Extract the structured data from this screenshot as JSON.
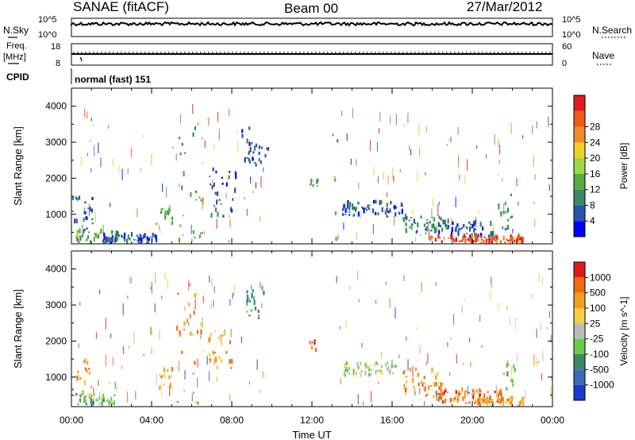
{
  "header": {
    "title": "SANAE (fitACF)",
    "beam": "Beam 00",
    "date": "27/Mar/2012"
  },
  "panels": {
    "nsky_label": "N.Sky",
    "nsearch_label": "N.Search",
    "noise_ticks_left": [
      "10^5",
      "10^0"
    ],
    "noise_ticks_right": [
      "10^5",
      "10^0"
    ],
    "freq_label_1": "Freq.",
    "freq_label_2": "[MHz]",
    "freq_ticks": [
      "18",
      "8"
    ],
    "nave_label": "Nave",
    "nave_ticks": [
      "60",
      "0"
    ],
    "cpid_label": "CPID",
    "cpid_text": "normal (fast) 151"
  },
  "colors": {
    "power": [
      "#0000ff",
      "#2a52a8",
      "#3a8a6a",
      "#55aa44",
      "#9bd84a",
      "#f0d02a",
      "#f08a2a",
      "#f05a1a",
      "#e01a1a"
    ],
    "velocity": [
      "#2038c8",
      "#3a6ab8",
      "#3a8a6a",
      "#66cc44",
      "#bcbcbc",
      "#f5d040",
      "#f0a020",
      "#f06a10",
      "#e01a1a"
    ]
  },
  "chart_data": [
    {
      "type": "heatmap",
      "name": "power",
      "ylabel": "Slant Range [km]",
      "ylim": [
        180,
        4500
      ],
      "yticks": [
        "1000",
        "2000",
        "3000",
        "4000"
      ],
      "xlim": [
        0,
        24
      ],
      "xticks": [
        "00:00",
        "04:00",
        "08:00",
        "12:00",
        "16:00",
        "20:00",
        "00:00"
      ],
      "colorbar": {
        "label": "Power [dB]",
        "ticks": [
          "4",
          "8",
          "12",
          "16",
          "20",
          "24",
          "28"
        ]
      },
      "regions": [
        {
          "x": [
            0.0,
            1.1
          ],
          "y": [
            250,
            1600
          ],
          "level": 1
        },
        {
          "x": [
            0.2,
            2.4
          ],
          "y": [
            180,
            500
          ],
          "level": 3
        },
        {
          "x": [
            1.5,
            4.2
          ],
          "y": [
            180,
            400
          ],
          "level": 1
        },
        {
          "x": [
            4.2,
            5.0
          ],
          "y": [
            700,
            1150
          ],
          "level": 3
        },
        {
          "x": [
            5.2,
            6.5
          ],
          "y": [
            200,
            3500
          ],
          "level": 3
        },
        {
          "x": [
            6.8,
            8.2
          ],
          "y": [
            900,
            2200
          ],
          "level": 1
        },
        {
          "x": [
            8.4,
            9.0
          ],
          "y": [
            2400,
            3400
          ],
          "level": 1
        },
        {
          "x": [
            8.8,
            9.8
          ],
          "y": [
            2300,
            2900
          ],
          "level": 1
        },
        {
          "x": [
            11.8,
            12.3
          ],
          "y": [
            1750,
            1950
          ],
          "level": 2
        },
        {
          "x": [
            13.0,
            13.3
          ],
          "y": [
            200,
            3600
          ],
          "level": 3
        },
        {
          "x": [
            13.5,
            16.5
          ],
          "y": [
            900,
            1300
          ],
          "level": 1
        },
        {
          "x": [
            16.5,
            18.5
          ],
          "y": [
            450,
            900
          ],
          "level": 2
        },
        {
          "x": [
            17.8,
            22.5
          ],
          "y": [
            180,
            350
          ],
          "level": 7
        },
        {
          "x": [
            18.2,
            21.0
          ],
          "y": [
            350,
            750
          ],
          "level": 1
        },
        {
          "x": [
            21.2,
            22.0
          ],
          "y": [
            500,
            1600
          ],
          "level": 2
        }
      ]
    },
    {
      "type": "heatmap",
      "name": "velocity",
      "ylabel": "Slant Range [km]",
      "xlabel": "Time UT",
      "ylim": [
        180,
        4500
      ],
      "yticks": [
        "1000",
        "2000",
        "3000",
        "4000"
      ],
      "xlim": [
        0,
        24
      ],
      "xticks": [
        "00:00",
        "04:00",
        "08:00",
        "12:00",
        "16:00",
        "20:00",
        "00:00"
      ],
      "colorbar": {
        "label": "Velocity [m s^-1]",
        "ticks": [
          "1000",
          "500",
          "100",
          "25",
          "-25",
          "-100",
          "-500",
          "-1000"
        ]
      },
      "regions": [
        {
          "x": [
            0.0,
            1.0
          ],
          "y": [
            250,
            1500
          ],
          "level": 6
        },
        {
          "x": [
            0.2,
            2.2
          ],
          "y": [
            180,
            500
          ],
          "level": 3
        },
        {
          "x": [
            4.2,
            5.0
          ],
          "y": [
            600,
            1200
          ],
          "level": 6
        },
        {
          "x": [
            5.2,
            6.5
          ],
          "y": [
            200,
            3500
          ],
          "level": 6
        },
        {
          "x": [
            6.8,
            8.0
          ],
          "y": [
            1200,
            2300
          ],
          "level": 6
        },
        {
          "x": [
            8.6,
            9.6
          ],
          "y": [
            2600,
            3400
          ],
          "level": 2
        },
        {
          "x": [
            11.8,
            12.2
          ],
          "y": [
            1700,
            1950
          ],
          "level": 7
        },
        {
          "x": [
            13.5,
            16.2
          ],
          "y": [
            1000,
            1350
          ],
          "level": 4
        },
        {
          "x": [
            16.5,
            18.5
          ],
          "y": [
            400,
            1200
          ],
          "level": 6
        },
        {
          "x": [
            18.0,
            21.5
          ],
          "y": [
            250,
            600
          ],
          "level": 7
        },
        {
          "x": [
            20.0,
            22.5
          ],
          "y": [
            180,
            350
          ],
          "level": 6
        },
        {
          "x": [
            21.5,
            22.2
          ],
          "y": [
            600,
            1500
          ],
          "level": 3
        }
      ]
    }
  ]
}
